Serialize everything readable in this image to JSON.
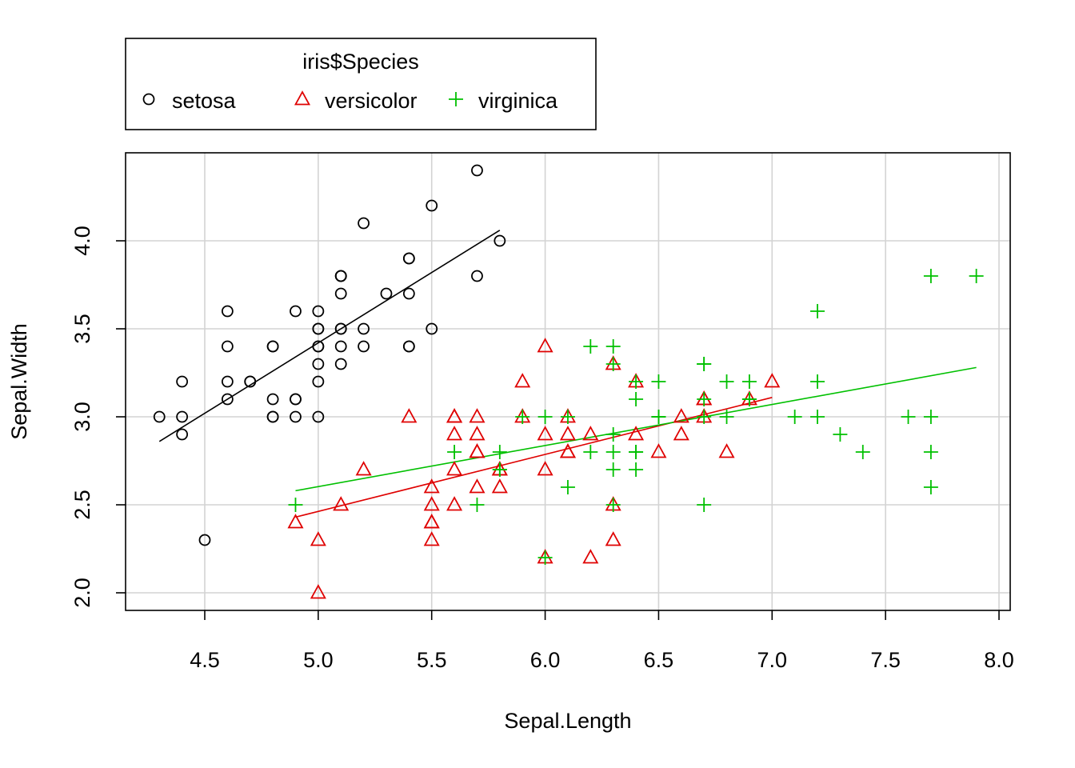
{
  "chart_data": {
    "type": "scatter",
    "xlabel": "Sepal.Length",
    "ylabel": "Sepal.Width",
    "xlim": [
      4.3,
      7.9
    ],
    "ylim": [
      2.0,
      4.4
    ],
    "x_ticks": [
      "4.5",
      "5.0",
      "5.5",
      "6.0",
      "6.5",
      "7.0",
      "7.5",
      "8.0"
    ],
    "y_ticks": [
      "2.0",
      "2.5",
      "3.0",
      "3.5",
      "4.0"
    ],
    "grid": true,
    "legend": {
      "title": "iris$Species",
      "position": "top-outside"
    },
    "series": [
      {
        "name": "setosa",
        "marker": "circle",
        "color": "#000000",
        "points": [
          [
            5.1,
            3.5
          ],
          [
            4.9,
            3.0
          ],
          [
            4.7,
            3.2
          ],
          [
            4.6,
            3.1
          ],
          [
            5.0,
            3.6
          ],
          [
            5.4,
            3.9
          ],
          [
            4.6,
            3.4
          ],
          [
            5.0,
            3.4
          ],
          [
            4.4,
            2.9
          ],
          [
            4.9,
            3.1
          ],
          [
            5.4,
            3.7
          ],
          [
            4.8,
            3.4
          ],
          [
            4.8,
            3.0
          ],
          [
            4.3,
            3.0
          ],
          [
            5.8,
            4.0
          ],
          [
            5.7,
            4.4
          ],
          [
            5.4,
            3.9
          ],
          [
            5.1,
            3.5
          ],
          [
            5.7,
            3.8
          ],
          [
            5.1,
            3.8
          ],
          [
            5.4,
            3.4
          ],
          [
            5.1,
            3.7
          ],
          [
            4.6,
            3.6
          ],
          [
            5.1,
            3.3
          ],
          [
            4.8,
            3.4
          ],
          [
            5.0,
            3.0
          ],
          [
            5.0,
            3.4
          ],
          [
            5.2,
            3.5
          ],
          [
            5.2,
            3.4
          ],
          [
            4.7,
            3.2
          ],
          [
            4.8,
            3.1
          ],
          [
            5.4,
            3.4
          ],
          [
            5.2,
            4.1
          ],
          [
            5.5,
            4.2
          ],
          [
            4.9,
            3.1
          ],
          [
            5.0,
            3.2
          ],
          [
            5.5,
            3.5
          ],
          [
            4.9,
            3.6
          ],
          [
            4.4,
            3.0
          ],
          [
            5.1,
            3.4
          ],
          [
            5.0,
            3.5
          ],
          [
            4.5,
            2.3
          ],
          [
            4.4,
            3.2
          ],
          [
            5.0,
            3.5
          ],
          [
            5.1,
            3.8
          ],
          [
            4.8,
            3.0
          ],
          [
            5.1,
            3.8
          ],
          [
            4.6,
            3.2
          ],
          [
            5.3,
            3.7
          ],
          [
            5.0,
            3.3
          ]
        ],
        "fit": [
          [
            4.3,
            2.86
          ],
          [
            5.8,
            4.06
          ]
        ]
      },
      {
        "name": "versicolor",
        "marker": "triangle",
        "color": "#DF0000",
        "points": [
          [
            7.0,
            3.2
          ],
          [
            6.4,
            3.2
          ],
          [
            6.9,
            3.1
          ],
          [
            5.5,
            2.3
          ],
          [
            6.5,
            2.8
          ],
          [
            5.7,
            2.8
          ],
          [
            6.3,
            3.3
          ],
          [
            4.9,
            2.4
          ],
          [
            6.6,
            2.9
          ],
          [
            5.2,
            2.7
          ],
          [
            5.0,
            2.0
          ],
          [
            5.9,
            3.0
          ],
          [
            6.0,
            2.2
          ],
          [
            6.1,
            2.9
          ],
          [
            5.6,
            2.9
          ],
          [
            6.7,
            3.1
          ],
          [
            5.6,
            3.0
          ],
          [
            5.8,
            2.7
          ],
          [
            6.2,
            2.2
          ],
          [
            5.6,
            2.5
          ],
          [
            5.9,
            3.2
          ],
          [
            6.1,
            2.8
          ],
          [
            6.3,
            2.5
          ],
          [
            6.1,
            2.8
          ],
          [
            6.4,
            2.9
          ],
          [
            6.6,
            3.0
          ],
          [
            6.8,
            2.8
          ],
          [
            6.7,
            3.0
          ],
          [
            6.0,
            2.9
          ],
          [
            5.7,
            2.6
          ],
          [
            5.5,
            2.4
          ],
          [
            5.5,
            2.4
          ],
          [
            5.8,
            2.7
          ],
          [
            6.0,
            2.7
          ],
          [
            5.4,
            3.0
          ],
          [
            6.0,
            3.4
          ],
          [
            6.7,
            3.1
          ],
          [
            6.3,
            2.3
          ],
          [
            5.6,
            3.0
          ],
          [
            5.5,
            2.5
          ],
          [
            5.5,
            2.6
          ],
          [
            6.1,
            3.0
          ],
          [
            5.8,
            2.6
          ],
          [
            5.0,
            2.3
          ],
          [
            5.6,
            2.7
          ],
          [
            5.7,
            3.0
          ],
          [
            5.7,
            2.9
          ],
          [
            6.2,
            2.9
          ],
          [
            5.1,
            2.5
          ],
          [
            5.7,
            2.8
          ]
        ],
        "fit": [
          [
            4.9,
            2.43
          ],
          [
            7.0,
            3.11
          ]
        ]
      },
      {
        "name": "virginica",
        "marker": "plus",
        "color": "#00C000",
        "points": [
          [
            6.3,
            3.3
          ],
          [
            5.8,
            2.7
          ],
          [
            7.1,
            3.0
          ],
          [
            6.3,
            2.9
          ],
          [
            6.5,
            3.0
          ],
          [
            7.6,
            3.0
          ],
          [
            4.9,
            2.5
          ],
          [
            7.3,
            2.9
          ],
          [
            6.7,
            2.5
          ],
          [
            7.2,
            3.6
          ],
          [
            6.5,
            3.2
          ],
          [
            6.4,
            2.7
          ],
          [
            6.8,
            3.0
          ],
          [
            5.7,
            2.5
          ],
          [
            5.8,
            2.8
          ],
          [
            6.4,
            3.2
          ],
          [
            6.5,
            3.0
          ],
          [
            7.7,
            3.8
          ],
          [
            7.7,
            2.6
          ],
          [
            6.0,
            2.2
          ],
          [
            6.9,
            3.2
          ],
          [
            5.6,
            2.8
          ],
          [
            7.7,
            2.8
          ],
          [
            6.3,
            2.7
          ],
          [
            6.7,
            3.3
          ],
          [
            7.2,
            3.2
          ],
          [
            6.2,
            2.8
          ],
          [
            6.1,
            3.0
          ],
          [
            6.4,
            2.8
          ],
          [
            7.2,
            3.0
          ],
          [
            7.4,
            2.8
          ],
          [
            7.9,
            3.8
          ],
          [
            6.4,
            2.8
          ],
          [
            6.3,
            2.8
          ],
          [
            6.1,
            2.6
          ],
          [
            7.7,
            3.0
          ],
          [
            6.3,
            3.4
          ],
          [
            6.4,
            3.1
          ],
          [
            6.0,
            3.0
          ],
          [
            6.9,
            3.1
          ],
          [
            6.7,
            3.1
          ],
          [
            6.9,
            3.1
          ],
          [
            5.8,
            2.7
          ],
          [
            6.8,
            3.2
          ],
          [
            6.7,
            3.3
          ],
          [
            6.7,
            3.0
          ],
          [
            6.3,
            2.5
          ],
          [
            6.5,
            3.0
          ],
          [
            6.2,
            3.4
          ],
          [
            5.9,
            3.0
          ]
        ],
        "fit": [
          [
            4.9,
            2.58
          ],
          [
            7.9,
            3.28
          ]
        ]
      }
    ]
  }
}
